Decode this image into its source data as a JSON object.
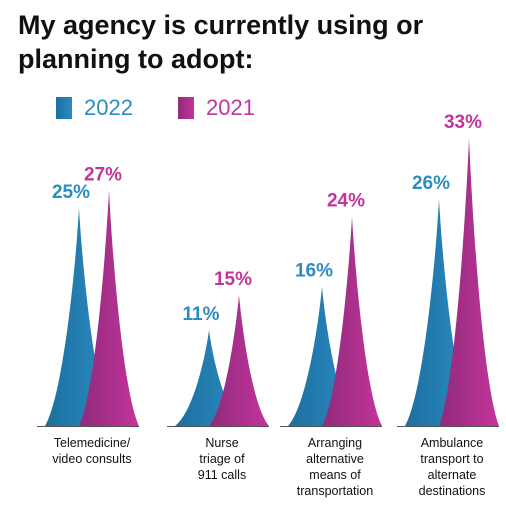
{
  "colors": {
    "series_2022": "#2b8cc4",
    "series_2022_dark": "#1c6f9e",
    "series_2021": "#c4349a",
    "series_2021_dark": "#8f2b7c",
    "baseline": "#555555",
    "text": "#111111"
  },
  "chart_data": {
    "type": "bar",
    "title": "My agency is currently using or planning to adopt:",
    "categories": [
      [
        "Telemedicine/",
        "video consults"
      ],
      [
        "Nurse",
        "triage of",
        "911 calls"
      ],
      [
        "Arranging",
        "alternative",
        "means of",
        "transportation"
      ],
      [
        "Ambulance",
        "transport to",
        "alternate",
        "destinations"
      ]
    ],
    "series": [
      {
        "name": "2022",
        "values": [
          25,
          11,
          16,
          26
        ],
        "labels": [
          "25%",
          "11%",
          "16%",
          "26%"
        ]
      },
      {
        "name": "2021",
        "values": [
          27,
          15,
          24,
          33
        ],
        "labels": [
          "27%",
          "15%",
          "24%",
          "33%"
        ]
      }
    ],
    "ylim": [
      0,
      33
    ],
    "legend": "top-left",
    "grid": false,
    "xlabel": "",
    "ylabel": ""
  }
}
